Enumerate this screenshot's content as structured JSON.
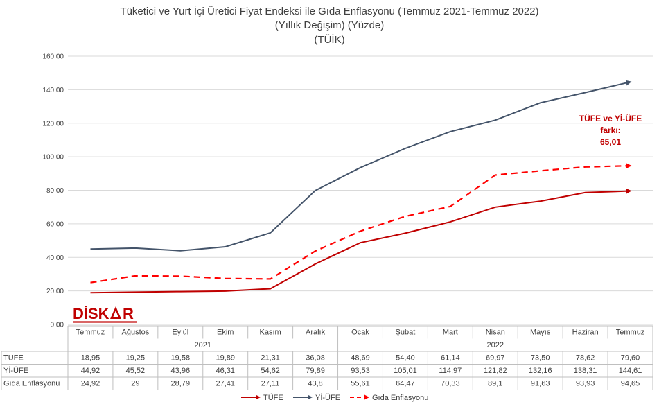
{
  "title_lines": [
    "Tüketici ve Yurt İçi Üretici Fiyat Endeksi ile Gıda Enflasyonu (Temmuz 2021-Temmuz 2022)",
    "(Yıllık Değişim) (Yüzde)",
    "(TÜİK)"
  ],
  "annotation": [
    "TÜFE ve Yİ-ÜFE",
    "farkı:",
    "65,01"
  ],
  "logo_text": "DİSK AR",
  "colors": {
    "tufe": "#c00000",
    "yiufe": "#44546a",
    "gida": "#ff0000",
    "grid": "#d9d9d9"
  },
  "chart_data": {
    "type": "line",
    "categories": [
      "Temmuz",
      "Ağustos",
      "Eylül",
      "Ekim",
      "Kasım",
      "Aralık",
      "Ocak",
      "Şubat",
      "Mart",
      "Nisan",
      "Mayıs",
      "Haziran",
      "Temmuz"
    ],
    "years": [
      {
        "label": "2021",
        "start": 0,
        "end": 5
      },
      {
        "label": "2022",
        "start": 6,
        "end": 12
      }
    ],
    "ylim": [
      0,
      160
    ],
    "yticks": [
      "0,00",
      "20,00",
      "40,00",
      "60,00",
      "80,00",
      "100,00",
      "120,00",
      "140,00",
      "160,00"
    ],
    "series": [
      {
        "name": "TÜFE",
        "style": "solid",
        "color": "#c00000",
        "values": [
          18.95,
          19.25,
          19.58,
          19.89,
          21.31,
          36.08,
          48.69,
          54.4,
          61.14,
          69.97,
          73.5,
          78.62,
          79.6
        ],
        "labels": [
          "18,95",
          "19,25",
          "19,58",
          "19,89",
          "21,31",
          "36,08",
          "48,69",
          "54,40",
          "61,14",
          "69,97",
          "73,50",
          "78,62",
          "79,60"
        ]
      },
      {
        "name": "Yİ-ÜFE",
        "style": "solid",
        "color": "#44546a",
        "values": [
          44.92,
          45.52,
          43.96,
          46.31,
          54.62,
          79.89,
          93.53,
          105.01,
          114.97,
          121.82,
          132.16,
          138.31,
          144.61
        ],
        "labels": [
          "44,92",
          "45,52",
          "43,96",
          "46,31",
          "54,62",
          "79,89",
          "93,53",
          "105,01",
          "114,97",
          "121,82",
          "132,16",
          "138,31",
          "144,61"
        ]
      },
      {
        "name": "Gıda Enflasyonu",
        "style": "dashed",
        "color": "#ff0000",
        "values": [
          24.92,
          29,
          28.79,
          27.41,
          27.11,
          43.8,
          55.61,
          64.47,
          70.33,
          89.1,
          91.63,
          93.93,
          94.65
        ],
        "labels": [
          "24,92",
          "29",
          "28,79",
          "27,41",
          "27,11",
          "43,8",
          "55,61",
          "64,47",
          "70,33",
          "89,1",
          "91,63",
          "93,93",
          "94,65"
        ]
      }
    ]
  }
}
